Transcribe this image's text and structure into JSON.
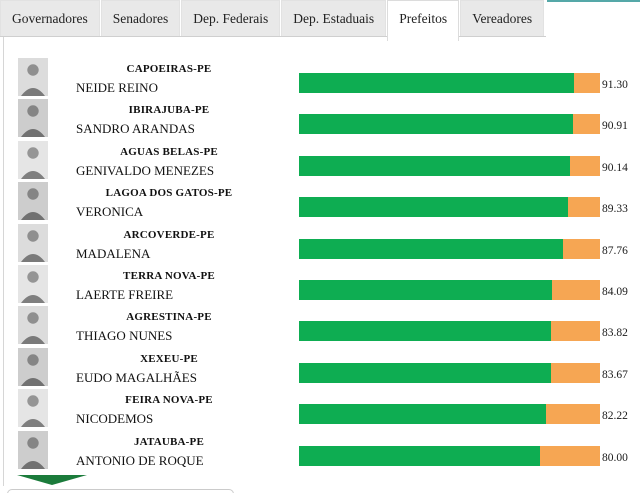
{
  "tabs": {
    "active_index": 4,
    "items": [
      {
        "label": "Governadores"
      },
      {
        "label": "Senadores"
      },
      {
        "label": "Dep. Federais"
      },
      {
        "label": "Dep. Estaduais"
      },
      {
        "label": "Prefeitos"
      },
      {
        "label": "Vereadores"
      }
    ]
  },
  "colors": {
    "bar_fill_green": "#0ead52",
    "bar_remainder_orange": "#f6a653",
    "scroll_arrow_green": "#1b7b3b",
    "teal_accent": "#55a8a8",
    "tab_background": "#e9e9e9"
  },
  "icons": {
    "photo_placeholder": "person-portrait-icon",
    "scroll_down": "triangle-down-icon"
  },
  "rows": [
    {
      "city": "CAPOEIRAS-PE",
      "name": "NEIDE REINO",
      "value": 91.3,
      "value_label": "91.30"
    },
    {
      "city": "IBIRAJUBA-PE",
      "name": "SANDRO ARANDAS",
      "value": 90.91,
      "value_label": "90.91"
    },
    {
      "city": "AGUAS BELAS-PE",
      "name": "GENIVALDO MENEZES",
      "value": 90.14,
      "value_label": "90.14"
    },
    {
      "city": "LAGOA DOS GATOS-PE",
      "name": "VERONICA",
      "value": 89.33,
      "value_label": "89.33"
    },
    {
      "city": "ARCOVERDE-PE",
      "name": "MADALENA",
      "value": 87.76,
      "value_label": "87.76"
    },
    {
      "city": "TERRA NOVA-PE",
      "name": "LAERTE FREIRE",
      "value": 84.09,
      "value_label": "84.09"
    },
    {
      "city": "AGRESTINA-PE",
      "name": "THIAGO NUNES",
      "value": 83.82,
      "value_label": "83.82"
    },
    {
      "city": "XEXEU-PE",
      "name": "EUDO MAGALHÃES",
      "value": 83.67,
      "value_label": "83.67"
    },
    {
      "city": "FEIRA NOVA-PE",
      "name": "NICODEMOS",
      "value": 82.22,
      "value_label": "82.22"
    },
    {
      "city": "JATAUBA-PE",
      "name": "ANTONIO DE ROQUE",
      "value": 80.0,
      "value_label": "80.00"
    }
  ],
  "chart_data": {
    "type": "bar",
    "orientation": "horizontal",
    "categories": [
      "CAPOEIRAS-PE",
      "IBIRAJUBA-PE",
      "AGUAS BELAS-PE",
      "LAGOA DOS GATOS-PE",
      "ARCOVERDE-PE",
      "TERRA NOVA-PE",
      "AGRESTINA-PE",
      "XEXEU-PE",
      "FEIRA NOVA-PE",
      "JATAUBA-PE"
    ],
    "labels": [
      "NEIDE REINO",
      "SANDRO ARANDAS",
      "GENIVALDO MENEZES",
      "VERONICA",
      "MADALENA",
      "LAERTE FREIRE",
      "THIAGO NUNES",
      "EUDO MAGALHÃES",
      "NICODEMOS",
      "ANTONIO DE ROQUE"
    ],
    "values": [
      91.3,
      90.91,
      90.14,
      89.33,
      87.76,
      84.09,
      83.82,
      83.67,
      82.22,
      80.0
    ],
    "xlim": [
      0,
      100
    ],
    "title": "",
    "legend": [],
    "bar_colors": {
      "fill": "#0ead52",
      "remainder": "#f6a653"
    }
  }
}
